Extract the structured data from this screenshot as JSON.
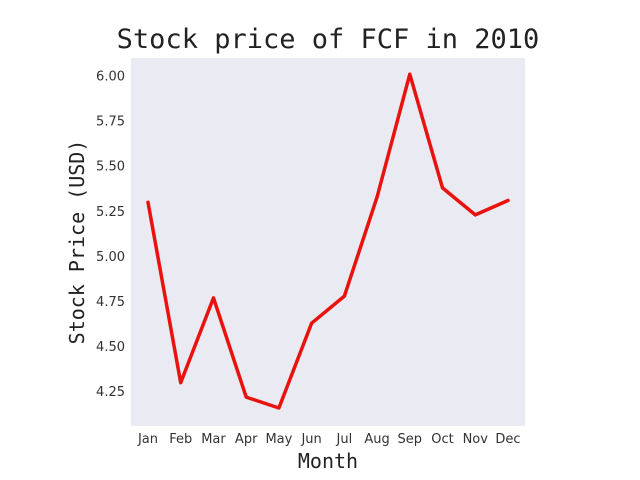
{
  "chart_data": {
    "type": "line",
    "title": "Stock price of FCF in 2010",
    "xlabel": "Month",
    "ylabel": "Stock Price (USD)",
    "categories": [
      "Jan",
      "Feb",
      "Mar",
      "Apr",
      "May",
      "Jun",
      "Jul",
      "Aug",
      "Sep",
      "Oct",
      "Nov",
      "Dec"
    ],
    "series": [
      {
        "values": [
          5.3,
          4.3,
          4.77,
          4.22,
          4.16,
          4.63,
          4.78,
          5.33,
          6.01,
          5.38,
          5.23,
          5.31
        ],
        "color": "#e8120e"
      }
    ],
    "ylim": [
      4.06,
      6.1
    ],
    "yticks": [
      "4.25",
      "4.50",
      "4.75",
      "5.00",
      "5.25",
      "5.50",
      "5.75",
      "6.00"
    ],
    "grid": false,
    "legend": "none",
    "background": "#eaeaf2"
  }
}
